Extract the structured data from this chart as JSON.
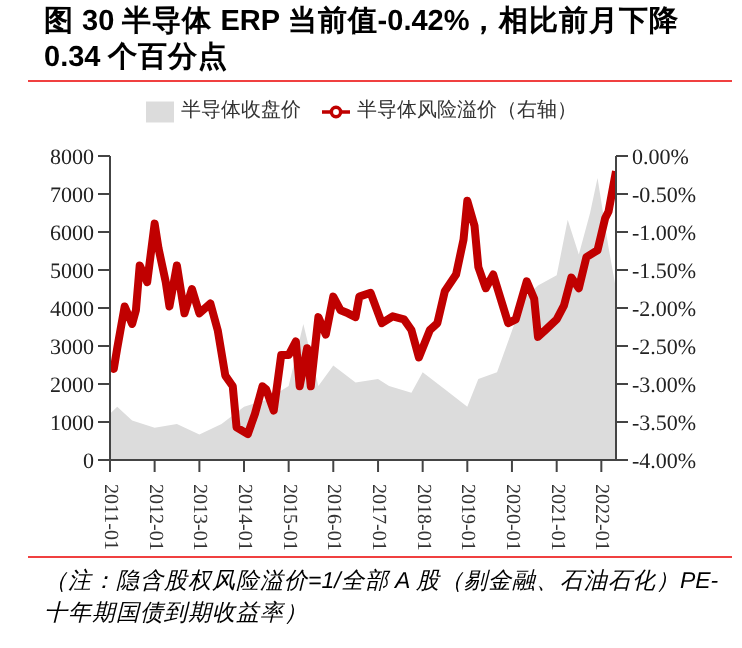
{
  "chart_data": {
    "type": "area",
    "title": "图 30 半导体 ERP 当前值-0.42%，相比前月下降 0.34 个百分点",
    "annotations": [
      "（注：隐含股权风险溢价=1/全部 A 股（剔金融、石油石化）PE-十年期国债到期收益率）"
    ],
    "legend": "top",
    "xlim": [
      "2011-01",
      "2022-05"
    ],
    "xticks": [
      "2011-01",
      "2012-01",
      "2013-01",
      "2014-01",
      "2015-01",
      "2016-01",
      "2017-01",
      "2018-01",
      "2019-01",
      "2020-01",
      "2021-01",
      "2022-01"
    ],
    "ylim": [
      0,
      8000
    ],
    "yticks": [
      0,
      1000,
      2000,
      3000,
      4000,
      5000,
      6000,
      7000,
      8000
    ],
    "y2lim": [
      -4,
      0
    ],
    "y2ticks": [
      {
        "value": -4,
        "label": "-4.00%"
      },
      {
        "value": -3.5,
        "label": "-3.50%"
      },
      {
        "value": -3,
        "label": "-3.00%"
      },
      {
        "value": -2.5,
        "label": "-2.50%"
      },
      {
        "value": -2,
        "label": "-2.00%"
      },
      {
        "value": -1.5,
        "label": "-1.50%"
      },
      {
        "value": -1,
        "label": "-1.00%"
      },
      {
        "value": -0.5,
        "label": "-0.50%"
      },
      {
        "value": 0,
        "label": "0.00%"
      }
    ],
    "series": [
      {
        "name": "半导体收盘价",
        "color": "#dcdcdc",
        "x": [
          "2011-01",
          "2011-03",
          "2011-07",
          "2012-01",
          "2012-07",
          "2013-01",
          "2013-07",
          "2014-01",
          "2014-07",
          "2015-01",
          "2015-05",
          "2015-09",
          "2016-01",
          "2016-07",
          "2017-01",
          "2017-04",
          "2017-10",
          "2018-01",
          "2018-07",
          "2019-01",
          "2019-04",
          "2019-09",
          "2020-01",
          "2020-04",
          "2020-08",
          "2021-01",
          "2021-04",
          "2021-07",
          "2021-10",
          "2021-12",
          "2022-03",
          "2022-05"
        ],
        "values": [
          1220,
          1400,
          1040,
          850,
          950,
          670,
          950,
          1400,
          1580,
          1950,
          3580,
          1950,
          2490,
          2040,
          2130,
          1950,
          1770,
          2310,
          1860,
          1400,
          2130,
          2310,
          3400,
          4230,
          4590,
          4860,
          6320,
          5410,
          6500,
          7420,
          5590,
          4500
        ]
      },
      {
        "name": "半导体风险溢价（右轴）",
        "type": "line",
        "axis": "y2",
        "color": "#c00000",
        "x": [
          "2011-01",
          "2011-02",
          "2011-03",
          "2011-05",
          "2011-07",
          "2011-08",
          "2011-09",
          "2011-11",
          "2012-01",
          "2012-02",
          "2012-04",
          "2012-05",
          "2012-07",
          "2012-09",
          "2012-11",
          "2013-01",
          "2013-04",
          "2013-06",
          "2013-08",
          "2013-10",
          "2013-11",
          "2014-02",
          "2014-04",
          "2014-06",
          "2014-07",
          "2014-09",
          "2014-11",
          "2015-01",
          "2015-03",
          "2015-04",
          "2015-06",
          "2015-07",
          "2015-09",
          "2015-11",
          "2016-01",
          "2016-03",
          "2016-05",
          "2016-07",
          "2016-08",
          "2016-11",
          "2017-02",
          "2017-05",
          "2017-08",
          "2017-10",
          "2017-12",
          "2018-03",
          "2018-05",
          "2018-07",
          "2018-10",
          "2018-12",
          "2019-01",
          "2019-03",
          "2019-04",
          "2019-06",
          "2019-08",
          "2019-10",
          "2019-12",
          "2020-02",
          "2020-05",
          "2020-07",
          "2020-08",
          "2020-10",
          "2021-01",
          "2021-03",
          "2021-05",
          "2021-07",
          "2021-09",
          "2021-12",
          "2022-02",
          "2022-03",
          "2022-05"
        ],
        "values": [
          -2.71,
          -2.8,
          -2.53,
          -1.98,
          -2.21,
          -2.03,
          -1.44,
          -1.66,
          -0.89,
          -1.21,
          -1.66,
          -1.98,
          -1.44,
          -2.07,
          -1.75,
          -2.07,
          -1.94,
          -2.3,
          -2.89,
          -3.03,
          -3.57,
          -3.66,
          -3.39,
          -3.03,
          -3.07,
          -3.35,
          -2.62,
          -2.62,
          -2.44,
          -3.03,
          -2.53,
          -3.03,
          -2.12,
          -2.35,
          -1.85,
          -2.03,
          -2.07,
          -2.12,
          -1.85,
          -1.8,
          -2.2,
          -2.11,
          -2.15,
          -2.29,
          -2.65,
          -2.29,
          -2.2,
          -1.78,
          -1.56,
          -1.1,
          -0.59,
          -0.92,
          -1.46,
          -1.74,
          -1.56,
          -1.88,
          -2.2,
          -2.15,
          -1.65,
          -1.88,
          -2.38,
          -2.29,
          -2.15,
          -1.97,
          -1.6,
          -1.74,
          -1.33,
          -1.24,
          -0.82,
          -0.73,
          -0.2
        ]
      }
    ]
  }
}
